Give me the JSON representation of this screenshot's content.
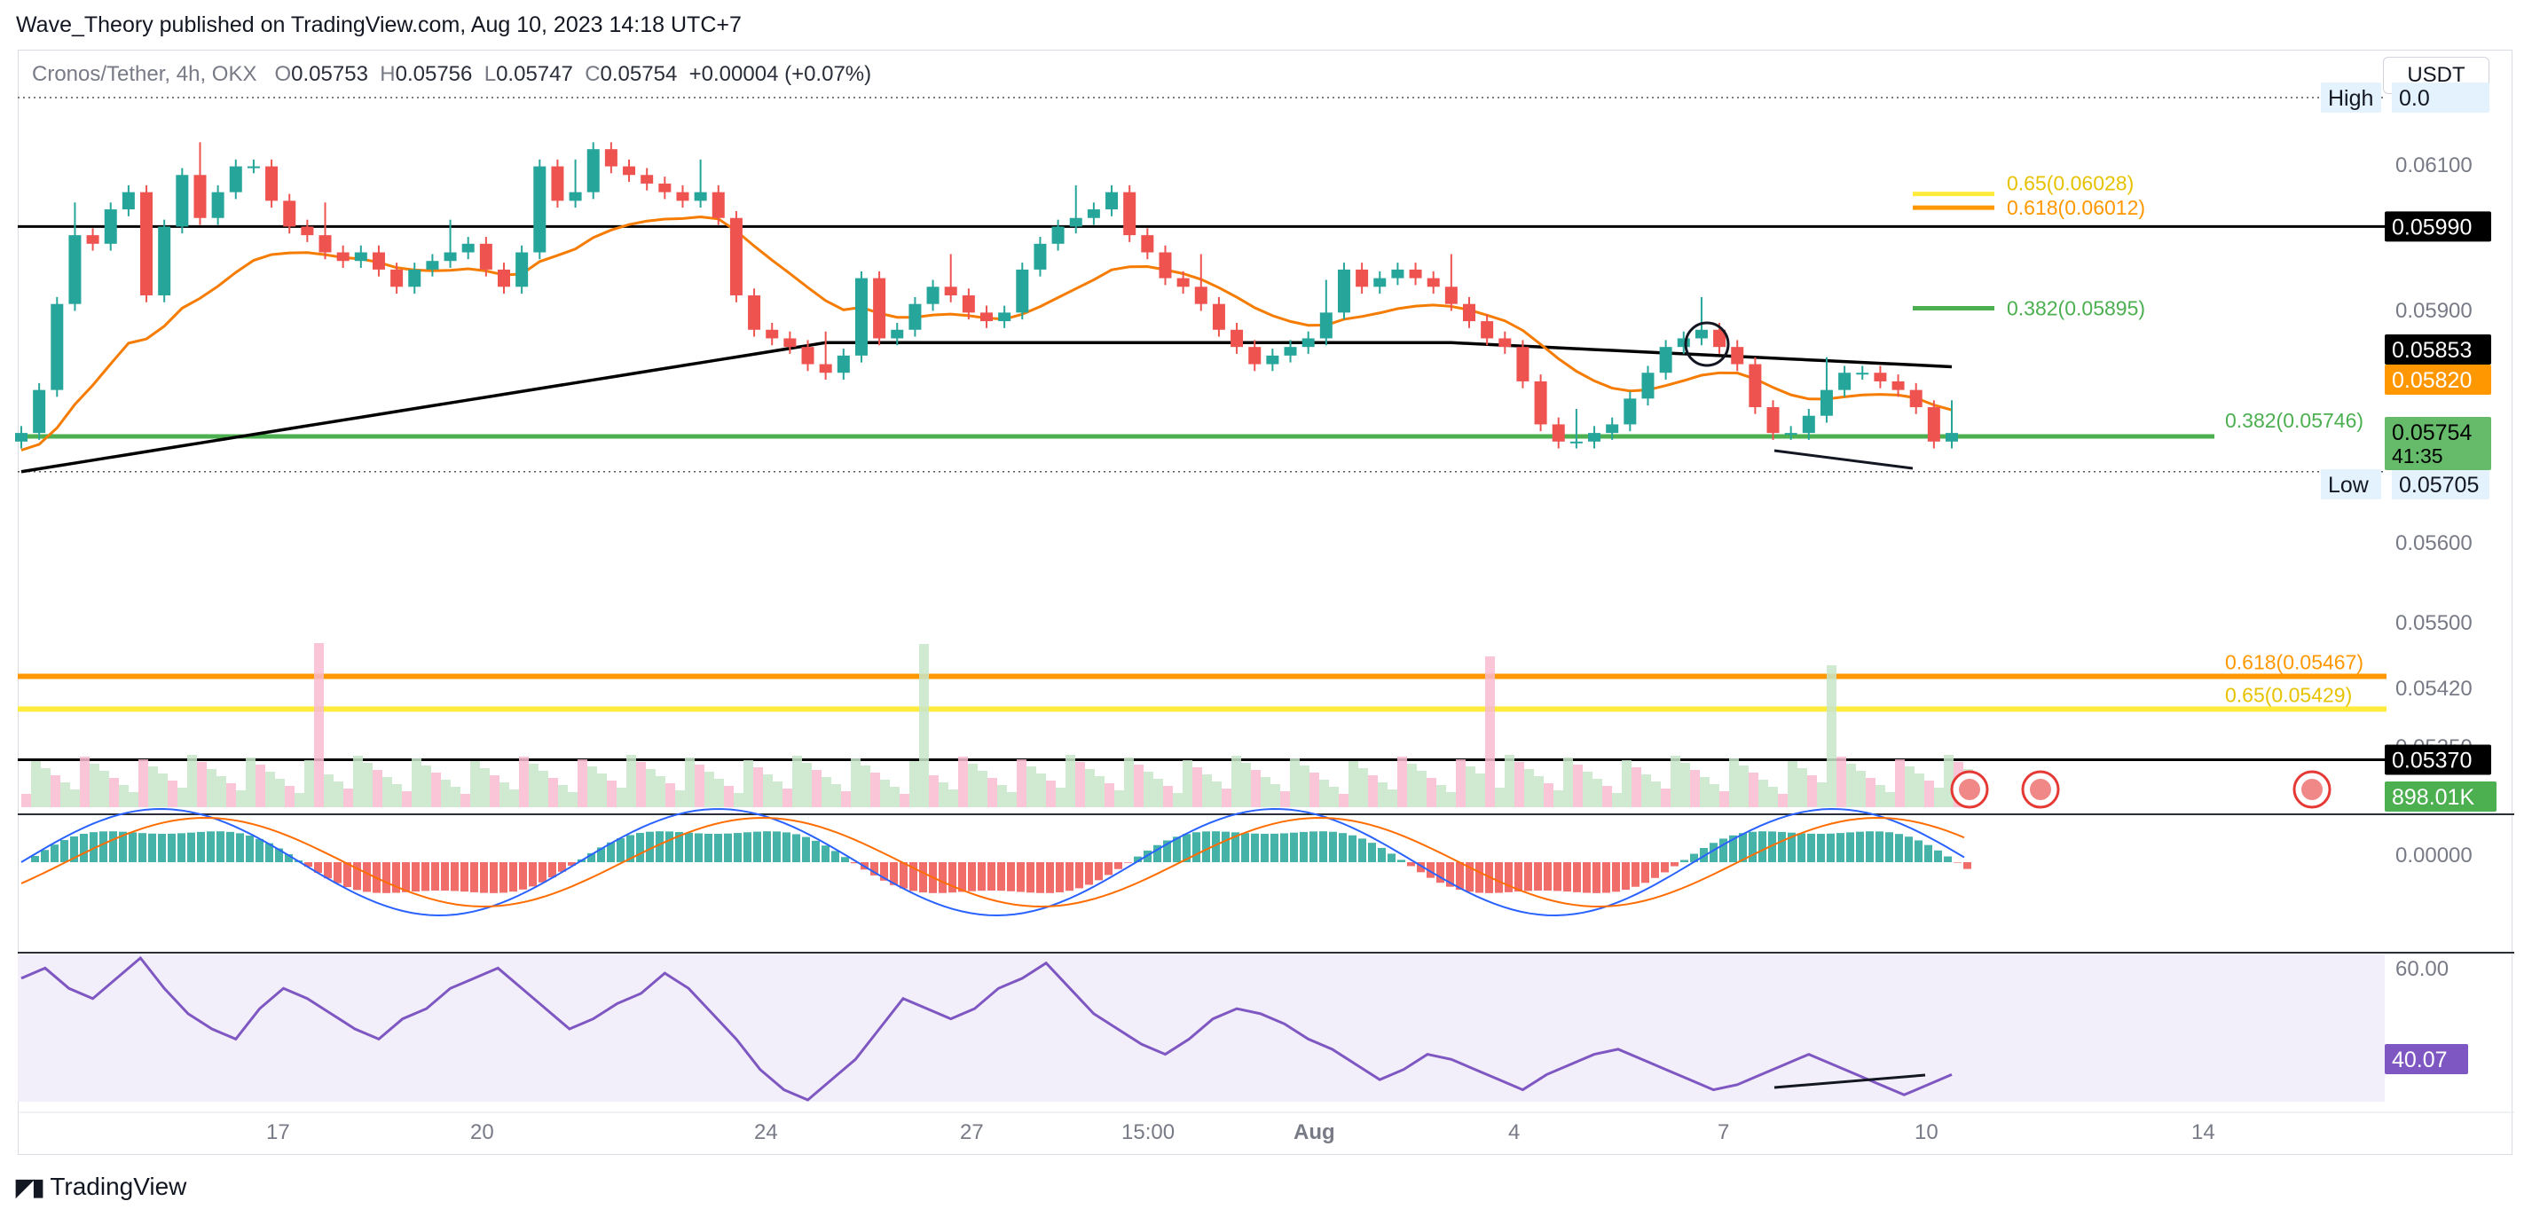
{
  "header": {
    "published": "Wave_Theory published on TradingView.com, Aug 10, 2023 14:18 UTC+7"
  },
  "legend": {
    "symbol": "Cronos/Tether, 4h, OKX",
    "o_label": "O",
    "o": "0.05753",
    "h_label": "H",
    "h": "0.05756",
    "l_label": "L",
    "l": "0.05747",
    "c_label": "C",
    "c": "0.05754",
    "change": "+0.00004 (+0.07%)"
  },
  "currency_button": "USDT",
  "footer": {
    "brand": "TradingView"
  },
  "colors": {
    "up": "#26a69a",
    "down": "#ef5350",
    "ema50": "#f57c00",
    "ema200": "#000000",
    "fib_orange": "#ff9800",
    "fib_yellow": "#ffeb3b",
    "support_green": "#4caf50",
    "macd": "#2962ff",
    "signal": "#ff6d00",
    "rsi": "#7e57c2"
  },
  "chart_data": {
    "type": "candlestick",
    "timeframe": "4h",
    "price_range": [
      0.0532,
      0.0614
    ],
    "price_ticks": [
      "0.06100",
      "0.05900",
      "0.05600",
      "0.05500",
      "0.05420",
      "0.05350",
      "0.00000",
      "60.00"
    ],
    "x_ticks": [
      "17",
      "20",
      "24",
      "27",
      "15:00",
      "Aug",
      "4",
      "7",
      "10",
      "14"
    ],
    "price_labels": {
      "high": {
        "label": "High",
        "value": "0.0"
      },
      "low": {
        "label": "Low",
        "value": "0.05705"
      },
      "last": {
        "value": "0.05754",
        "countdown": "41:35"
      },
      "ema200": "0.05853",
      "ema50": "0.05820",
      "level_top": "0.05990",
      "level_bottom": "0.05370",
      "volume": "898.01K",
      "rsi": "40.07"
    },
    "horizontal_levels": [
      {
        "name": "resistance",
        "value": 0.0599
      },
      {
        "name": "support",
        "value": 0.05746
      },
      {
        "name": "support_low",
        "value": 0.0537
      }
    ],
    "fib_levels": [
      {
        "label": "0.65(0.06028)",
        "value": 0.06028
      },
      {
        "label": "0.618(0.06012)",
        "value": 0.06012
      },
      {
        "label": "0.382(0.05895)",
        "value": 0.05895
      },
      {
        "label": "0.382(0.05746)",
        "value": 0.05746
      },
      {
        "label": "0.618(0.05467)",
        "value": 0.05467
      },
      {
        "label": "0.65(0.05429)",
        "value": 0.05429
      }
    ],
    "close": [
      0.0575,
      0.058,
      0.059,
      0.0598,
      0.0597,
      0.0601,
      0.0603,
      0.0591,
      0.0599,
      0.0605,
      0.06,
      0.0603,
      0.0606,
      0.0606,
      0.0602,
      0.0599,
      0.0598,
      0.0596,
      0.0595,
      0.0596,
      0.0594,
      0.0592,
      0.0594,
      0.0595,
      0.0596,
      0.0597,
      0.0594,
      0.0592,
      0.0596,
      0.0606,
      0.0602,
      0.0603,
      0.0608,
      0.0606,
      0.0605,
      0.0604,
      0.0603,
      0.0602,
      0.0603,
      0.06,
      0.0591,
      0.0587,
      0.0586,
      0.0585,
      0.0583,
      0.0582,
      0.0584,
      0.0593,
      0.0586,
      0.0587,
      0.059,
      0.0592,
      0.0591,
      0.0589,
      0.0588,
      0.0589,
      0.0594,
      0.0597,
      0.0599,
      0.06,
      0.0601,
      0.0603,
      0.0598,
      0.0596,
      0.0593,
      0.0592,
      0.059,
      0.0587,
      0.0585,
      0.0583,
      0.0584,
      0.0585,
      0.0586,
      0.0589,
      0.0594,
      0.0592,
      0.0593,
      0.0594,
      0.0593,
      0.0592,
      0.059,
      0.0588,
      0.0586,
      0.0585,
      0.0581,
      0.0576,
      0.0574,
      0.0574,
      0.0575,
      0.0576,
      0.0579,
      0.0582,
      0.0585,
      0.0586,
      0.0587,
      0.0585,
      0.0583,
      0.0578,
      0.0575,
      0.0575,
      0.0577,
      0.058,
      0.0582,
      0.0582,
      0.0581,
      0.058,
      0.0578,
      0.0574,
      0.0575
    ],
    "rsi_values": [
      62,
      64,
      60,
      58,
      62,
      66,
      60,
      55,
      52,
      50,
      56,
      60,
      58,
      55,
      52,
      50,
      54,
      56,
      60,
      62,
      64,
      60,
      56,
      52,
      54,
      57,
      59,
      63,
      60,
      55,
      50,
      44,
      40,
      38,
      42,
      46,
      52,
      58,
      56,
      54,
      56,
      60,
      62,
      65,
      60,
      55,
      52,
      49,
      47,
      50,
      54,
      56,
      55,
      53,
      50,
      48,
      45,
      42,
      44,
      47,
      46,
      44,
      42,
      40,
      43,
      45,
      47,
      48,
      46,
      44,
      42,
      40,
      41,
      43,
      45,
      47,
      45,
      43,
      41,
      39,
      41,
      43
    ]
  }
}
